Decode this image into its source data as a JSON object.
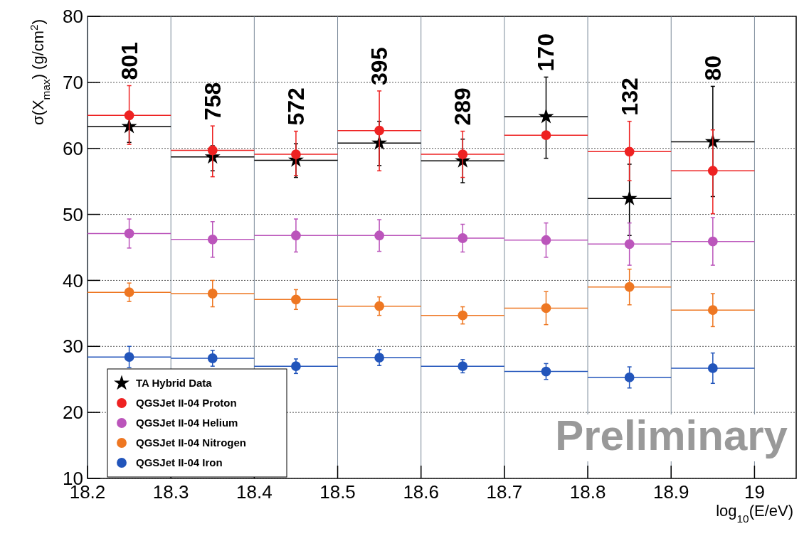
{
  "chart_data": {
    "type": "scatter",
    "xlabel": "log$_{10}$(E/eV)",
    "ylabel": "σ(X$_{max}$) (g/cm$^{2}$)",
    "x": [
      18.25,
      18.35,
      18.45,
      18.55,
      18.65,
      18.75,
      18.85,
      18.95
    ],
    "xlim": [
      18.2,
      19.05
    ],
    "xticks": [
      {
        "value": 18.2,
        "label": "18.2"
      },
      {
        "value": 18.3,
        "label": "18.3"
      },
      {
        "value": 18.4,
        "label": "18.4"
      },
      {
        "value": 18.5,
        "label": "18.5"
      },
      {
        "value": 18.6,
        "label": "18.6"
      },
      {
        "value": 18.7,
        "label": "18.7"
      },
      {
        "value": 18.8,
        "label": "18.8"
      },
      {
        "value": 18.9,
        "label": "18.9"
      },
      {
        "value": 19,
        "label": "19"
      }
    ],
    "ylim": [
      10,
      80
    ],
    "yticks": [
      10,
      20,
      30,
      40,
      50,
      60,
      70,
      80
    ],
    "grid": true,
    "legend": "bottom left",
    "series": [
      {
        "name": "TA Hybrid Data",
        "color": "#000000",
        "marker": "star",
        "values": [
          63.3,
          58.7,
          58.2,
          60.8,
          58.1,
          64.8,
          52.4,
          61.0
        ],
        "errors": [
          [
            60.9,
            65.6
          ],
          [
            56.6,
            60.4
          ],
          [
            55.6,
            60.7
          ],
          [
            57.4,
            64.1
          ],
          [
            54.8,
            61.4
          ],
          [
            58.5,
            70.8
          ],
          [
            46.8,
            57.6
          ],
          [
            52.7,
            69.4
          ]
        ],
        "xerrors": [
          0.05,
          0.05,
          0.05,
          0.05,
          0.05,
          0.05,
          0.05,
          0.05
        ]
      },
      {
        "name": "QGSJet II-04 Proton",
        "color": "#ee2222",
        "marker": "circle",
        "values": [
          65.0,
          59.7,
          59.1,
          62.7,
          59.1,
          62.0,
          59.5,
          56.6
        ],
        "errors": [
          [
            60.6,
            69.5
          ],
          [
            55.7,
            63.4
          ],
          [
            55.9,
            62.6
          ],
          [
            56.6,
            68.7
          ],
          [
            55.6,
            62.6
          ],
          null,
          [
            55.1,
            64.1
          ],
          [
            50.1,
            62.8
          ]
        ],
        "xerrors": [
          0.05,
          0.05,
          0.05,
          0.05,
          0.05,
          0.05,
          0.05,
          0.05
        ]
      },
      {
        "name": "QGSJet II-04 Helium",
        "color": "#bb55bb",
        "marker": "circle",
        "values": [
          47.1,
          46.2,
          46.8,
          46.8,
          46.4,
          46.1,
          45.5,
          45.9
        ],
        "errors": [
          2.2,
          2.7,
          2.5,
          2.4,
          2.1,
          2.6,
          3.2,
          3.6
        ],
        "xerrors": [
          0.05,
          0.05,
          0.05,
          0.05,
          0.05,
          0.05,
          0.05,
          0.05
        ]
      },
      {
        "name": "QGSJet II-04 Nitrogen",
        "color": "#ee7722",
        "marker": "circle",
        "values": [
          38.2,
          38.0,
          37.1,
          36.1,
          34.7,
          35.8,
          39.0,
          35.5
        ],
        "errors": [
          1.4,
          2.0,
          1.5,
          1.4,
          1.3,
          2.5,
          2.7,
          2.5
        ],
        "xerrors": [
          0.05,
          0.05,
          0.05,
          0.05,
          0.05,
          0.05,
          0.05,
          0.05
        ]
      },
      {
        "name": "QGSJet II-04 Iron",
        "color": "#2255bb",
        "marker": "circle",
        "values": [
          28.4,
          28.2,
          27.0,
          28.3,
          27.0,
          26.2,
          25.3,
          26.7
        ],
        "errors": [
          1.6,
          1.2,
          1.1,
          1.2,
          1.0,
          1.2,
          1.6,
          2.3
        ],
        "xerrors": [
          0.05,
          0.05,
          0.05,
          0.05,
          0.05,
          0.05,
          0.05,
          0.05
        ]
      }
    ],
    "annotations": [
      "801",
      "758",
      "572",
      "395",
      "289",
      "170",
      "132",
      "80",
      "Preliminary"
    ]
  }
}
